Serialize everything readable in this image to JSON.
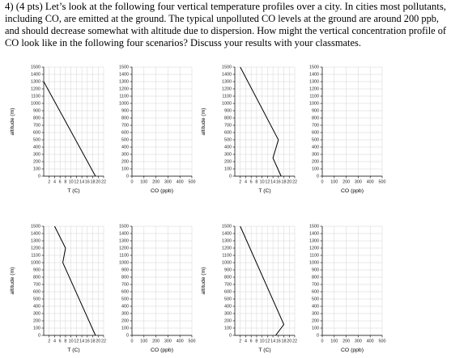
{
  "question_lines": [
    "4) (4 pts) Let’s look at the following four vertical temperature profiles over a city. In cities most pollutants,",
    "including CO, are emitted at the ground. The typical unpolluted CO levels at the ground are around 200 ppb,",
    "and should decrease somewhat with altitude due to dispersion. How might the vertical concentration profile of",
    "CO look like in the following four scenarios? Discuss your results with your classmates."
  ],
  "chart_data": [
    {
      "type": "line",
      "xlabel": "T (C)",
      "ylabel": "altitude (m)",
      "x": [
        19,
        0
      ],
      "values": [
        0,
        1300
      ],
      "color": "#000000",
      "xlim": [
        0,
        22
      ],
      "xticks": [
        2,
        4,
        6,
        8,
        10,
        12,
        14,
        16,
        18,
        20,
        22
      ],
      "ylim": [
        0,
        1500
      ],
      "yticks": [
        0,
        100,
        200,
        300,
        400,
        500,
        600,
        700,
        800,
        900,
        1000,
        1100,
        1200,
        1300,
        1400,
        1500
      ],
      "grid": true
    },
    {
      "type": "line",
      "xlabel": "CO (ppb)",
      "xlim": [
        0,
        500
      ],
      "xticks": [
        0,
        100,
        200,
        300,
        400,
        500
      ],
      "ylim": [
        0,
        1500
      ],
      "yticks": [
        0,
        100,
        200,
        300,
        400,
        500,
        600,
        700,
        800,
        900,
        1000,
        1100,
        1200,
        1300,
        1400,
        1500
      ],
      "grid": true
    },
    {
      "type": "line",
      "xlabel": "T (C)",
      "ylabel": "altitude (m)",
      "x": [
        2,
        16,
        14,
        17
      ],
      "values": [
        1500,
        500,
        250,
        0
      ],
      "color": "#000000",
      "xlim": [
        0,
        22
      ],
      "xticks": [
        2,
        4,
        6,
        8,
        10,
        12,
        14,
        16,
        18,
        20,
        22
      ],
      "ylim": [
        0,
        1500
      ],
      "yticks": [
        0,
        100,
        200,
        300,
        400,
        500,
        600,
        700,
        800,
        900,
        1000,
        1100,
        1200,
        1300,
        1400,
        1500
      ],
      "grid": true
    },
    {
      "type": "line",
      "xlabel": "CO (ppb)",
      "xlim": [
        0,
        500
      ],
      "xticks": [
        0,
        100,
        200,
        300,
        400,
        500
      ],
      "ylim": [
        0,
        1500
      ],
      "yticks": [
        0,
        100,
        200,
        300,
        400,
        500,
        600,
        700,
        800,
        900,
        1000,
        1100,
        1200,
        1300,
        1400,
        1500
      ],
      "grid": true
    },
    {
      "type": "line",
      "xlabel": "T (C)",
      "ylabel": "altitude (m)",
      "x": [
        4,
        8,
        7,
        19
      ],
      "values": [
        1500,
        1200,
        1000,
        0
      ],
      "color": "#000000",
      "xlim": [
        0,
        22
      ],
      "xticks": [
        2,
        4,
        6,
        8,
        10,
        12,
        14,
        16,
        18,
        20,
        22
      ],
      "ylim": [
        0,
        1500
      ],
      "yticks": [
        0,
        100,
        200,
        300,
        400,
        500,
        600,
        700,
        800,
        900,
        1000,
        1100,
        1200,
        1300,
        1400,
        1500
      ],
      "grid": true
    },
    {
      "type": "line",
      "xlabel": "CO (ppb)",
      "xlim": [
        0,
        500
      ],
      "xticks": [
        0,
        100,
        200,
        300,
        400,
        500
      ],
      "ylim": [
        0,
        1500
      ],
      "yticks": [
        0,
        100,
        200,
        300,
        400,
        500,
        600,
        700,
        800,
        900,
        1000,
        1100,
        1200,
        1300,
        1400,
        1500
      ],
      "grid": true
    },
    {
      "type": "line",
      "xlabel": "T (C)",
      "ylabel": "altitude (m)",
      "x": [
        2,
        18,
        15
      ],
      "values": [
        1500,
        150,
        0
      ],
      "color": "#000000",
      "xlim": [
        0,
        22
      ],
      "xticks": [
        2,
        4,
        6,
        8,
        10,
        12,
        14,
        16,
        18,
        20,
        22
      ],
      "ylim": [
        0,
        1500
      ],
      "yticks": [
        0,
        100,
        200,
        300,
        400,
        500,
        600,
        700,
        800,
        900,
        1000,
        1100,
        1200,
        1300,
        1400,
        1500
      ],
      "grid": true
    },
    {
      "type": "line",
      "xlabel": "CO (ppb)",
      "xlim": [
        0,
        500
      ],
      "xticks": [
        0,
        100,
        200,
        300,
        400,
        500
      ],
      "ylim": [
        0,
        1500
      ],
      "yticks": [
        0,
        100,
        200,
        300,
        400,
        500,
        600,
        700,
        800,
        900,
        1000,
        1100,
        1200,
        1300,
        1400,
        1500
      ],
      "grid": true
    }
  ]
}
